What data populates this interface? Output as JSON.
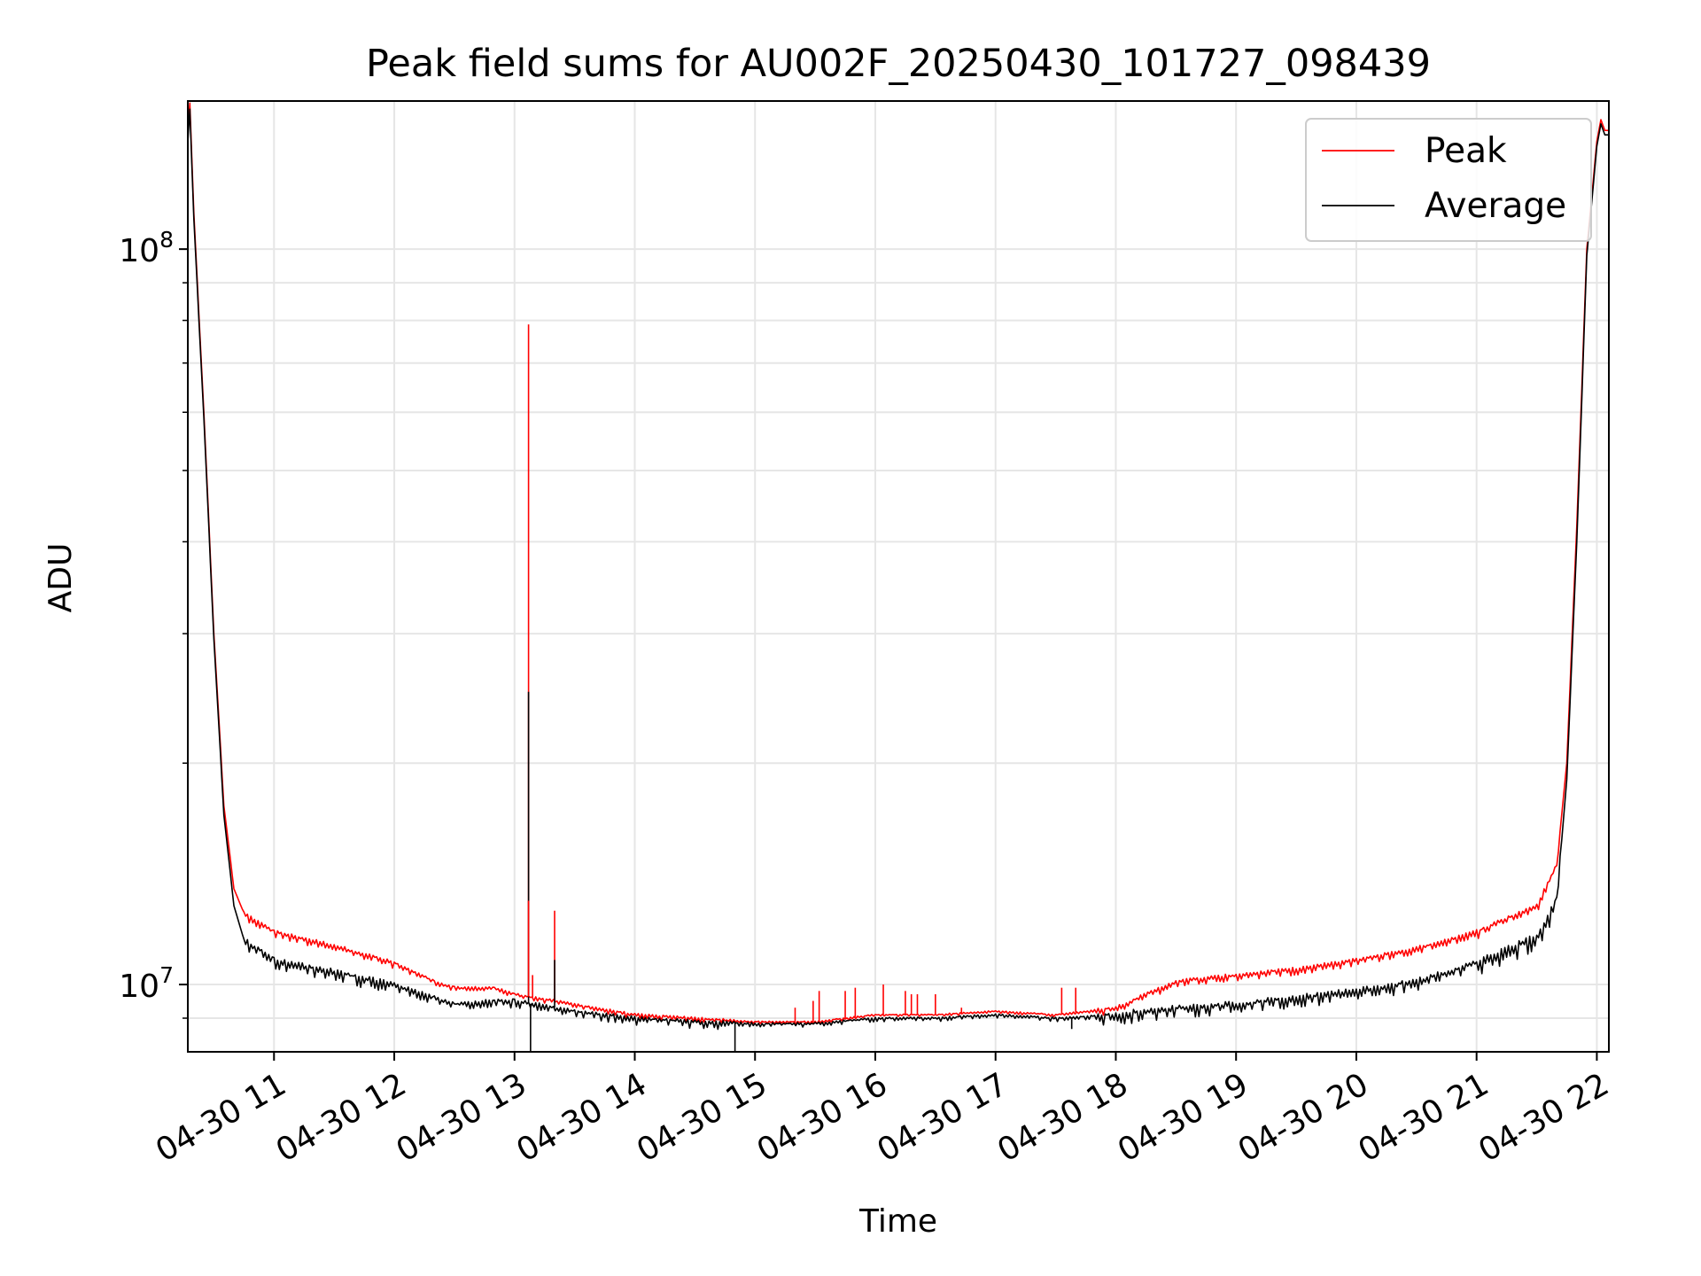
{
  "chart_data": {
    "type": "line",
    "title": "Peak field sums for AU002F_20250430_101727_098439",
    "xlabel": "Time",
    "ylabel": "ADU",
    "y_scale": "log",
    "xlim": [
      "2025-04-30 10:17",
      "2025-04-30 22:06"
    ],
    "ylim": [
      8100000.0,
      159000000.0
    ],
    "grid": true,
    "legend_position": "top-right",
    "x_ticks": [
      {
        "value": "2025-04-30 11:00",
        "label": "04-30 11"
      },
      {
        "value": "2025-04-30 12:00",
        "label": "04-30 12"
      },
      {
        "value": "2025-04-30 13:00",
        "label": "04-30 13"
      },
      {
        "value": "2025-04-30 14:00",
        "label": "04-30 14"
      },
      {
        "value": "2025-04-30 15:00",
        "label": "04-30 15"
      },
      {
        "value": "2025-04-30 16:00",
        "label": "04-30 16"
      },
      {
        "value": "2025-04-30 17:00",
        "label": "04-30 17"
      },
      {
        "value": "2025-04-30 18:00",
        "label": "04-30 18"
      },
      {
        "value": "2025-04-30 19:00",
        "label": "04-30 19"
      },
      {
        "value": "2025-04-30 20:00",
        "label": "04-30 20"
      },
      {
        "value": "2025-04-30 21:00",
        "label": "04-30 21"
      },
      {
        "value": "2025-04-30 22:00",
        "label": "04-30 22"
      }
    ],
    "y_ticks": [
      {
        "value": 10000000,
        "base": "10",
        "exp": "7"
      },
      {
        "value": 100000000,
        "base": "10",
        "exp": "8"
      }
    ],
    "series": [
      {
        "name": "Peak",
        "color": "#ff0000",
        "x": [
          "2025-04-30 10:17",
          "2025-04-30 10:18",
          "2025-04-30 10:20",
          "2025-04-30 10:25",
          "2025-04-30 10:30",
          "2025-04-30 10:35",
          "2025-04-30 10:40",
          "2025-04-30 10:45",
          "2025-04-30 11:00",
          "2025-04-30 11:30",
          "2025-04-30 12:00",
          "2025-04-30 12:20",
          "2025-04-30 12:30",
          "2025-04-30 12:50",
          "2025-04-30 13:00",
          "2025-04-30 13:30",
          "2025-04-30 14:00",
          "2025-04-30 14:30",
          "2025-04-30 15:00",
          "2025-04-30 15:30",
          "2025-04-30 16:00",
          "2025-04-30 16:30",
          "2025-04-30 17:00",
          "2025-04-30 17:30",
          "2025-04-30 18:00",
          "2025-04-30 18:30",
          "2025-04-30 19:00",
          "2025-04-30 19:30",
          "2025-04-30 20:00",
          "2025-04-30 20:30",
          "2025-04-30 21:00",
          "2025-04-30 21:30",
          "2025-04-30 21:40",
          "2025-04-30 21:45",
          "2025-04-30 21:50",
          "2025-04-30 21:55",
          "2025-04-30 22:00",
          "2025-04-30 22:02",
          "2025-04-30 22:04",
          "2025-04-30 22:06"
        ],
        "values": [
          145000000,
          158000000,
          112000000,
          60000000,
          30000000,
          17500000,
          13500000,
          12500000,
          11800000,
          11300000,
          10700000,
          10100000,
          9900000,
          9900000,
          9700000,
          9400000,
          9100000,
          9000000,
          8900000,
          8900000,
          9100000,
          9100000,
          9200000,
          9100000,
          9300000,
          10100000,
          10300000,
          10500000,
          10800000,
          11200000,
          11800000,
          12800000,
          14500000,
          20000000,
          42000000,
          100000000,
          140000000,
          150000000,
          145000000,
          145000000
        ]
      },
      {
        "name": "Average",
        "color": "#000000",
        "x": [
          "2025-04-30 10:17",
          "2025-04-30 10:18",
          "2025-04-30 10:20",
          "2025-04-30 10:25",
          "2025-04-30 10:30",
          "2025-04-30 10:35",
          "2025-04-30 10:40",
          "2025-04-30 10:45",
          "2025-04-30 11:00",
          "2025-04-30 11:30",
          "2025-04-30 12:00",
          "2025-04-30 12:20",
          "2025-04-30 12:30",
          "2025-04-30 12:50",
          "2025-04-30 13:00",
          "2025-04-30 13:30",
          "2025-04-30 14:00",
          "2025-04-30 14:30",
          "2025-04-30 15:00",
          "2025-04-30 15:30",
          "2025-04-30 16:00",
          "2025-04-30 16:30",
          "2025-04-30 17:00",
          "2025-04-30 17:30",
          "2025-04-30 18:00",
          "2025-04-30 18:30",
          "2025-04-30 19:00",
          "2025-04-30 19:30",
          "2025-04-30 20:00",
          "2025-04-30 20:30",
          "2025-04-30 21:00",
          "2025-04-30 21:30",
          "2025-04-30 21:40",
          "2025-04-30 21:45",
          "2025-04-30 21:50",
          "2025-04-30 21:55",
          "2025-04-30 22:00",
          "2025-04-30 22:02",
          "2025-04-30 22:04",
          "2025-04-30 22:06"
        ],
        "values": [
          140000000,
          155000000,
          110000000,
          59000000,
          29500000,
          17000000,
          12800000,
          11500000,
          10800000,
          10400000,
          10000000,
          9600000,
          9400000,
          9500000,
          9500000,
          9200000,
          9000000,
          8900000,
          8850000,
          8850000,
          9000000,
          9000000,
          9100000,
          9000000,
          9100000,
          9300000,
          9400000,
          9600000,
          9800000,
          10100000,
          10700000,
          11600000,
          13000000,
          19000000,
          40000000,
          98000000,
          138000000,
          148000000,
          143000000,
          143000000
        ]
      }
    ],
    "spikes": [
      {
        "series": "Peak",
        "x": "2025-04-30 13:07",
        "value": 79000000
      },
      {
        "series": "Average",
        "x": "2025-04-30 13:07",
        "value": 25000000
      },
      {
        "series": "Peak",
        "x": "2025-04-30 13:07",
        "value": 13000000
      },
      {
        "series": "Peak",
        "x": "2025-04-30 13:09",
        "value": 10300000
      },
      {
        "series": "Peak",
        "x": "2025-04-30 13:20",
        "value": 12600000
      },
      {
        "series": "Average",
        "x": "2025-04-30 13:20",
        "value": 10800000
      },
      {
        "series": "Average",
        "x": "2025-04-30 13:08",
        "value": 8000000
      },
      {
        "series": "Average",
        "x": "2025-04-30 14:50",
        "value": 8000000
      },
      {
        "series": "Peak",
        "x": "2025-04-30 15:20",
        "value": 9300000
      },
      {
        "series": "Peak",
        "x": "2025-04-30 15:29",
        "value": 9500000
      },
      {
        "series": "Peak",
        "x": "2025-04-30 15:32",
        "value": 9800000
      },
      {
        "series": "Peak",
        "x": "2025-04-30 15:45",
        "value": 9800000
      },
      {
        "series": "Peak",
        "x": "2025-04-30 15:50",
        "value": 9900000
      },
      {
        "series": "Peak",
        "x": "2025-04-30 16:04",
        "value": 10000000
      },
      {
        "series": "Peak",
        "x": "2025-04-30 16:15",
        "value": 9800000
      },
      {
        "series": "Peak",
        "x": "2025-04-30 16:18",
        "value": 9700000
      },
      {
        "series": "Peak",
        "x": "2025-04-30 16:21",
        "value": 9700000
      },
      {
        "series": "Peak",
        "x": "2025-04-30 16:30",
        "value": 9700000
      },
      {
        "series": "Peak",
        "x": "2025-04-30 16:43",
        "value": 9300000
      },
      {
        "series": "Peak",
        "x": "2025-04-30 17:33",
        "value": 9900000
      },
      {
        "series": "Peak",
        "x": "2025-04-30 17:40",
        "value": 9900000
      },
      {
        "series": "Average",
        "x": "2025-04-30 17:38",
        "value": 8700000
      }
    ]
  }
}
